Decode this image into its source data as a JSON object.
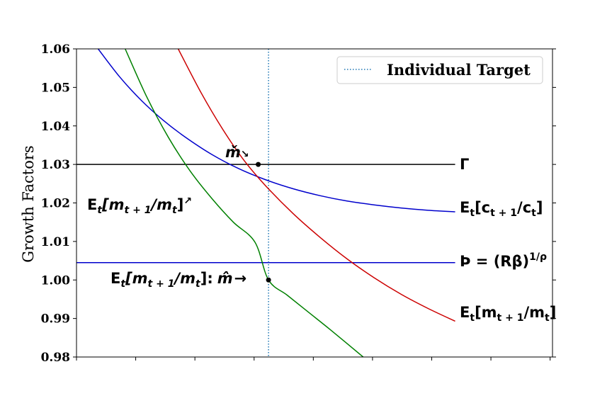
{
  "chart_data": {
    "type": "line",
    "xlabel": "",
    "ylabel": "Growth Factors",
    "ylim": [
      0.98,
      1.06
    ],
    "y_ticks": [
      "0.98",
      "0.99",
      "1.00",
      "1.01",
      "1.02",
      "1.03",
      "1.04",
      "1.05",
      "1.06"
    ],
    "x_tick_count": 9,
    "grid": false,
    "legend": {
      "placement": "top-right",
      "label": "Individual Target"
    },
    "horizontal_lines": [
      {
        "y": 1.03,
        "color": "#000000",
        "label": "Γ"
      },
      {
        "y": 1.0045,
        "color": "#0000cc",
        "label_main": "Þ = (Rβ)",
        "label_sup": "1/ρ"
      }
    ],
    "vertical_lines": [
      {
        "x": 0.355,
        "color": "#1f77b4",
        "style": "dotted",
        "label": "Individual Target"
      }
    ],
    "series": [
      {
        "color": "#0000cc",
        "x": [
          0.04,
          0.08,
          0.12,
          0.16,
          0.2,
          0.25,
          0.3,
          0.35,
          0.4,
          0.45,
          0.5,
          0.55,
          0.6,
          0.65,
          0.7
        ],
        "y": [
          1.06,
          1.0527,
          1.0466,
          1.0415,
          1.0372,
          1.0326,
          1.0289,
          1.026,
          1.0237,
          1.0219,
          1.0205,
          1.0195,
          1.0187,
          1.0181,
          1.0177
        ],
        "end_label_main": "E",
        "end_label_sub": "t",
        "end_label_rest": "[c",
        "end_label_sub2": "t + 1",
        "end_label_tail": "/c",
        "end_label_sub3": "t",
        "end_label_close": "]"
      },
      {
        "color": "#cc0000",
        "x": [
          0.188,
          0.23,
          0.27,
          0.31,
          0.35,
          0.4,
          0.45,
          0.5,
          0.55,
          0.6,
          0.65,
          0.7
        ],
        "y": [
          1.06,
          1.0487,
          1.0392,
          1.031,
          1.0244,
          1.0173,
          1.0111,
          1.0055,
          1.0006,
          0.9963,
          0.9926,
          0.9893
        ],
        "end_label_main": "E",
        "end_label_sub": "t",
        "end_label_rest": "[m",
        "end_label_sub2": "t + 1",
        "end_label_tail": "/m",
        "end_label_sub3": "t",
        "end_label_close": "]"
      },
      {
        "color": "#008000",
        "x": [
          0.09,
          0.13,
          0.17,
          0.21,
          0.25,
          0.29,
          0.33,
          0.355,
          0.39,
          0.43,
          0.47,
          0.53
        ],
        "y": [
          1.06,
          1.0475,
          1.037,
          1.0283,
          1.0212,
          1.015,
          1.0098,
          1.0,
          0.996,
          0.9915,
          0.987,
          0.98
        ]
      }
    ],
    "points": [
      {
        "x": 0.336,
        "y": 1.03
      },
      {
        "x": 0.355,
        "y": 1.0
      }
    ],
    "annotations": {
      "m_check": "m̌",
      "m_hat_prefix": "E",
      "m_hat_sub": "t",
      "m_hat_rest": "[m",
      "m_hat_sub2": "t + 1",
      "m_hat_tail": "/m",
      "m_hat_sub3": "t",
      "m_hat_close": "]:",
      "m_hat_symbol": "m̂",
      "m_hat_arrow": "→",
      "m_check_arrow": "↘",
      "green_label_prefix": "E",
      "green_label_sub": "t",
      "green_label_rest": "[m",
      "green_label_sub2": "t + 1",
      "green_label_tail": "/m",
      "green_label_sub3": "t",
      "green_label_close": "]",
      "green_label_arrow": "↗"
    }
  }
}
